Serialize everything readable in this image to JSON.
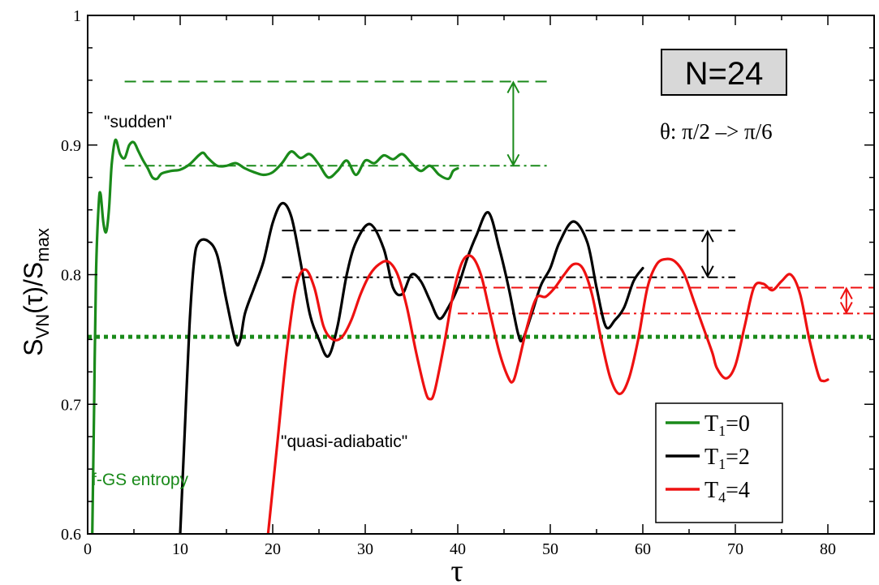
{
  "chart_data": {
    "type": "line",
    "xlabel": "τ",
    "ylabel_main": "S",
    "ylabel_sub1": "VN",
    "ylabel_mid": "(τ)/S",
    "ylabel_sub2": "max",
    "xlim": [
      0,
      85
    ],
    "ylim": [
      0.6,
      1.0
    ],
    "xticks": [
      0,
      10,
      20,
      30,
      40,
      50,
      60,
      70,
      80
    ],
    "yticks": [
      0.6,
      0.7,
      0.8,
      0.9,
      1.0
    ],
    "ytick_labels": [
      "0.6",
      "0.7",
      "0.8",
      "0.9",
      "1"
    ],
    "colors": {
      "green": "#1a8a1a",
      "black": "#000000",
      "red": "#ee1111"
    },
    "series": [
      {
        "legend_label": "T",
        "legend_sub": "1",
        "legend_suffix": "=0",
        "color": "#1a8a1a",
        "points": [
          [
            0.5,
            0.6
          ],
          [
            0.7,
            0.7
          ],
          [
            0.9,
            0.8
          ],
          [
            1.2,
            0.855
          ],
          [
            1.4,
            0.862
          ],
          [
            1.7,
            0.84
          ],
          [
            2.0,
            0.833
          ],
          [
            2.3,
            0.85
          ],
          [
            2.6,
            0.885
          ],
          [
            3.0,
            0.904
          ],
          [
            3.5,
            0.893
          ],
          [
            4.0,
            0.89
          ],
          [
            4.5,
            0.9
          ],
          [
            5.0,
            0.902
          ],
          [
            5.5,
            0.895
          ],
          [
            6.0,
            0.888
          ],
          [
            6.5,
            0.882
          ],
          [
            7.0,
            0.875
          ],
          [
            7.5,
            0.874
          ],
          [
            8.0,
            0.878
          ],
          [
            9.0,
            0.88
          ],
          [
            10.0,
            0.881
          ],
          [
            11.0,
            0.885
          ],
          [
            12.0,
            0.892
          ],
          [
            12.5,
            0.894
          ],
          [
            13.0,
            0.89
          ],
          [
            14.0,
            0.884
          ],
          [
            15.0,
            0.884
          ],
          [
            16.0,
            0.886
          ],
          [
            17.0,
            0.882
          ],
          [
            18.0,
            0.879
          ],
          [
            19.0,
            0.877
          ],
          [
            20.0,
            0.879
          ],
          [
            21.0,
            0.886
          ],
          [
            22.0,
            0.895
          ],
          [
            23.0,
            0.89
          ],
          [
            24.0,
            0.893
          ],
          [
            25.0,
            0.885
          ],
          [
            26.0,
            0.875
          ],
          [
            27.0,
            0.88
          ],
          [
            28.0,
            0.888
          ],
          [
            29.0,
            0.877
          ],
          [
            30.0,
            0.888
          ],
          [
            31.0,
            0.886
          ],
          [
            32.0,
            0.892
          ],
          [
            33.0,
            0.889
          ],
          [
            34.0,
            0.893
          ],
          [
            35.0,
            0.886
          ],
          [
            36.0,
            0.88
          ],
          [
            37.0,
            0.884
          ],
          [
            38.0,
            0.877
          ],
          [
            39.0,
            0.874
          ],
          [
            39.5,
            0.88
          ],
          [
            40.0,
            0.882
          ]
        ]
      },
      {
        "legend_label": "T",
        "legend_sub": "1",
        "legend_suffix": "=2",
        "color": "#000000",
        "points": [
          [
            10.0,
            0.6
          ],
          [
            10.5,
            0.68
          ],
          [
            11.0,
            0.76
          ],
          [
            11.5,
            0.81
          ],
          [
            12.0,
            0.825
          ],
          [
            13.0,
            0.826
          ],
          [
            14.0,
            0.815
          ],
          [
            15.0,
            0.78
          ],
          [
            16.0,
            0.748
          ],
          [
            16.5,
            0.75
          ],
          [
            17.0,
            0.77
          ],
          [
            18.0,
            0.79
          ],
          [
            19.0,
            0.81
          ],
          [
            20.0,
            0.84
          ],
          [
            21.0,
            0.855
          ],
          [
            22.0,
            0.845
          ],
          [
            23.0,
            0.81
          ],
          [
            24.0,
            0.77
          ],
          [
            25.0,
            0.75
          ],
          [
            26.0,
            0.737
          ],
          [
            27.0,
            0.76
          ],
          [
            28.0,
            0.8
          ],
          [
            29.0,
            0.825
          ],
          [
            30.5,
            0.839
          ],
          [
            32.0,
            0.82
          ],
          [
            33.0,
            0.79
          ],
          [
            34.0,
            0.785
          ],
          [
            35.0,
            0.8
          ],
          [
            36.0,
            0.795
          ],
          [
            37.0,
            0.78
          ],
          [
            38.0,
            0.766
          ],
          [
            39.0,
            0.775
          ],
          [
            40.0,
            0.79
          ],
          [
            41.0,
            0.812
          ],
          [
            42.0,
            0.83
          ],
          [
            43.3,
            0.848
          ],
          [
            44.5,
            0.82
          ],
          [
            45.5,
            0.79
          ],
          [
            46.5,
            0.755
          ],
          [
            47.0,
            0.75
          ],
          [
            48.0,
            0.77
          ],
          [
            49.0,
            0.792
          ],
          [
            50.0,
            0.805
          ],
          [
            51.0,
            0.825
          ],
          [
            52.5,
            0.841
          ],
          [
            54.0,
            0.825
          ],
          [
            55.0,
            0.79
          ],
          [
            56.0,
            0.76
          ],
          [
            57.0,
            0.765
          ],
          [
            58.0,
            0.775
          ],
          [
            59.0,
            0.795
          ],
          [
            60.0,
            0.805
          ]
        ]
      },
      {
        "legend_label": "T",
        "legend_sub": "4",
        "legend_suffix": "=4",
        "color": "#ee1111",
        "points": [
          [
            19.5,
            0.6
          ],
          [
            20.5,
            0.67
          ],
          [
            21.5,
            0.74
          ],
          [
            22.5,
            0.79
          ],
          [
            23.5,
            0.804
          ],
          [
            24.5,
            0.79
          ],
          [
            25.5,
            0.76
          ],
          [
            26.5,
            0.75
          ],
          [
            27.5,
            0.752
          ],
          [
            28.5,
            0.765
          ],
          [
            29.5,
            0.785
          ],
          [
            30.5,
            0.8
          ],
          [
            31.5,
            0.808
          ],
          [
            32.5,
            0.81
          ],
          [
            33.5,
            0.8
          ],
          [
            34.5,
            0.775
          ],
          [
            35.5,
            0.74
          ],
          [
            36.5,
            0.71
          ],
          [
            37.0,
            0.704
          ],
          [
            37.5,
            0.71
          ],
          [
            38.5,
            0.745
          ],
          [
            39.5,
            0.785
          ],
          [
            40.5,
            0.81
          ],
          [
            41.5,
            0.814
          ],
          [
            42.5,
            0.8
          ],
          [
            43.5,
            0.77
          ],
          [
            44.5,
            0.74
          ],
          [
            45.5,
            0.72
          ],
          [
            46.0,
            0.718
          ],
          [
            46.5,
            0.73
          ],
          [
            47.5,
            0.76
          ],
          [
            48.5,
            0.782
          ],
          [
            49.5,
            0.783
          ],
          [
            50.5,
            0.79
          ],
          [
            51.5,
            0.8
          ],
          [
            52.5,
            0.808
          ],
          [
            53.5,
            0.805
          ],
          [
            54.5,
            0.785
          ],
          [
            55.5,
            0.75
          ],
          [
            56.5,
            0.72
          ],
          [
            57.5,
            0.708
          ],
          [
            58.5,
            0.72
          ],
          [
            59.5,
            0.75
          ],
          [
            60.5,
            0.79
          ],
          [
            61.5,
            0.808
          ],
          [
            62.5,
            0.812
          ],
          [
            63.5,
            0.81
          ],
          [
            64.5,
            0.8
          ],
          [
            65.5,
            0.78
          ],
          [
            66.5,
            0.76
          ],
          [
            67.5,
            0.74
          ],
          [
            68.0,
            0.728
          ],
          [
            69.0,
            0.72
          ],
          [
            70.0,
            0.73
          ],
          [
            71.0,
            0.76
          ],
          [
            72.0,
            0.79
          ],
          [
            73.0,
            0.793
          ],
          [
            74.0,
            0.788
          ],
          [
            75.0,
            0.795
          ],
          [
            76.0,
            0.8
          ],
          [
            77.0,
            0.785
          ],
          [
            78.0,
            0.75
          ],
          [
            79.0,
            0.722
          ],
          [
            79.5,
            0.718
          ],
          [
            80.0,
            0.719
          ]
        ]
      }
    ],
    "reference_lines": [
      {
        "style": "dashed",
        "color": "#1a8a1a",
        "x": [
          4,
          50
        ],
        "y": 0.949
      },
      {
        "style": "dashdot",
        "color": "#1a8a1a",
        "x": [
          4,
          50
        ],
        "y": 0.884
      },
      {
        "style": "dashed",
        "color": "#000000",
        "x": [
          21,
          70
        ],
        "y": 0.834
      },
      {
        "style": "dashdot",
        "color": "#000000",
        "x": [
          21,
          70
        ],
        "y": 0.798
      },
      {
        "style": "dashed",
        "color": "#ee1111",
        "x": [
          40,
          85
        ],
        "y": 0.79
      },
      {
        "style": "dashdot",
        "color": "#ee1111",
        "x": [
          40,
          85
        ],
        "y": 0.77
      },
      {
        "style": "dotted",
        "color": "#1a8a1a",
        "x": [
          0,
          85
        ],
        "y": 0.752
      }
    ],
    "arrows": [
      {
        "color": "#1a8a1a",
        "x": 46,
        "y": [
          0.949,
          0.884
        ]
      },
      {
        "color": "#000000",
        "x": 67,
        "y": [
          0.834,
          0.798
        ]
      },
      {
        "color": "#ee1111",
        "x": 82,
        "y": [
          0.79,
          0.77
        ]
      }
    ],
    "annotations": {
      "n_box": "N=24",
      "theta": "θ: π/2 –> π/6",
      "sudden": "\"sudden\"",
      "quasi": "\"quasi-adiabatic\"",
      "fgs": "f-GS entropy"
    },
    "legend_position": "bottom-right"
  }
}
